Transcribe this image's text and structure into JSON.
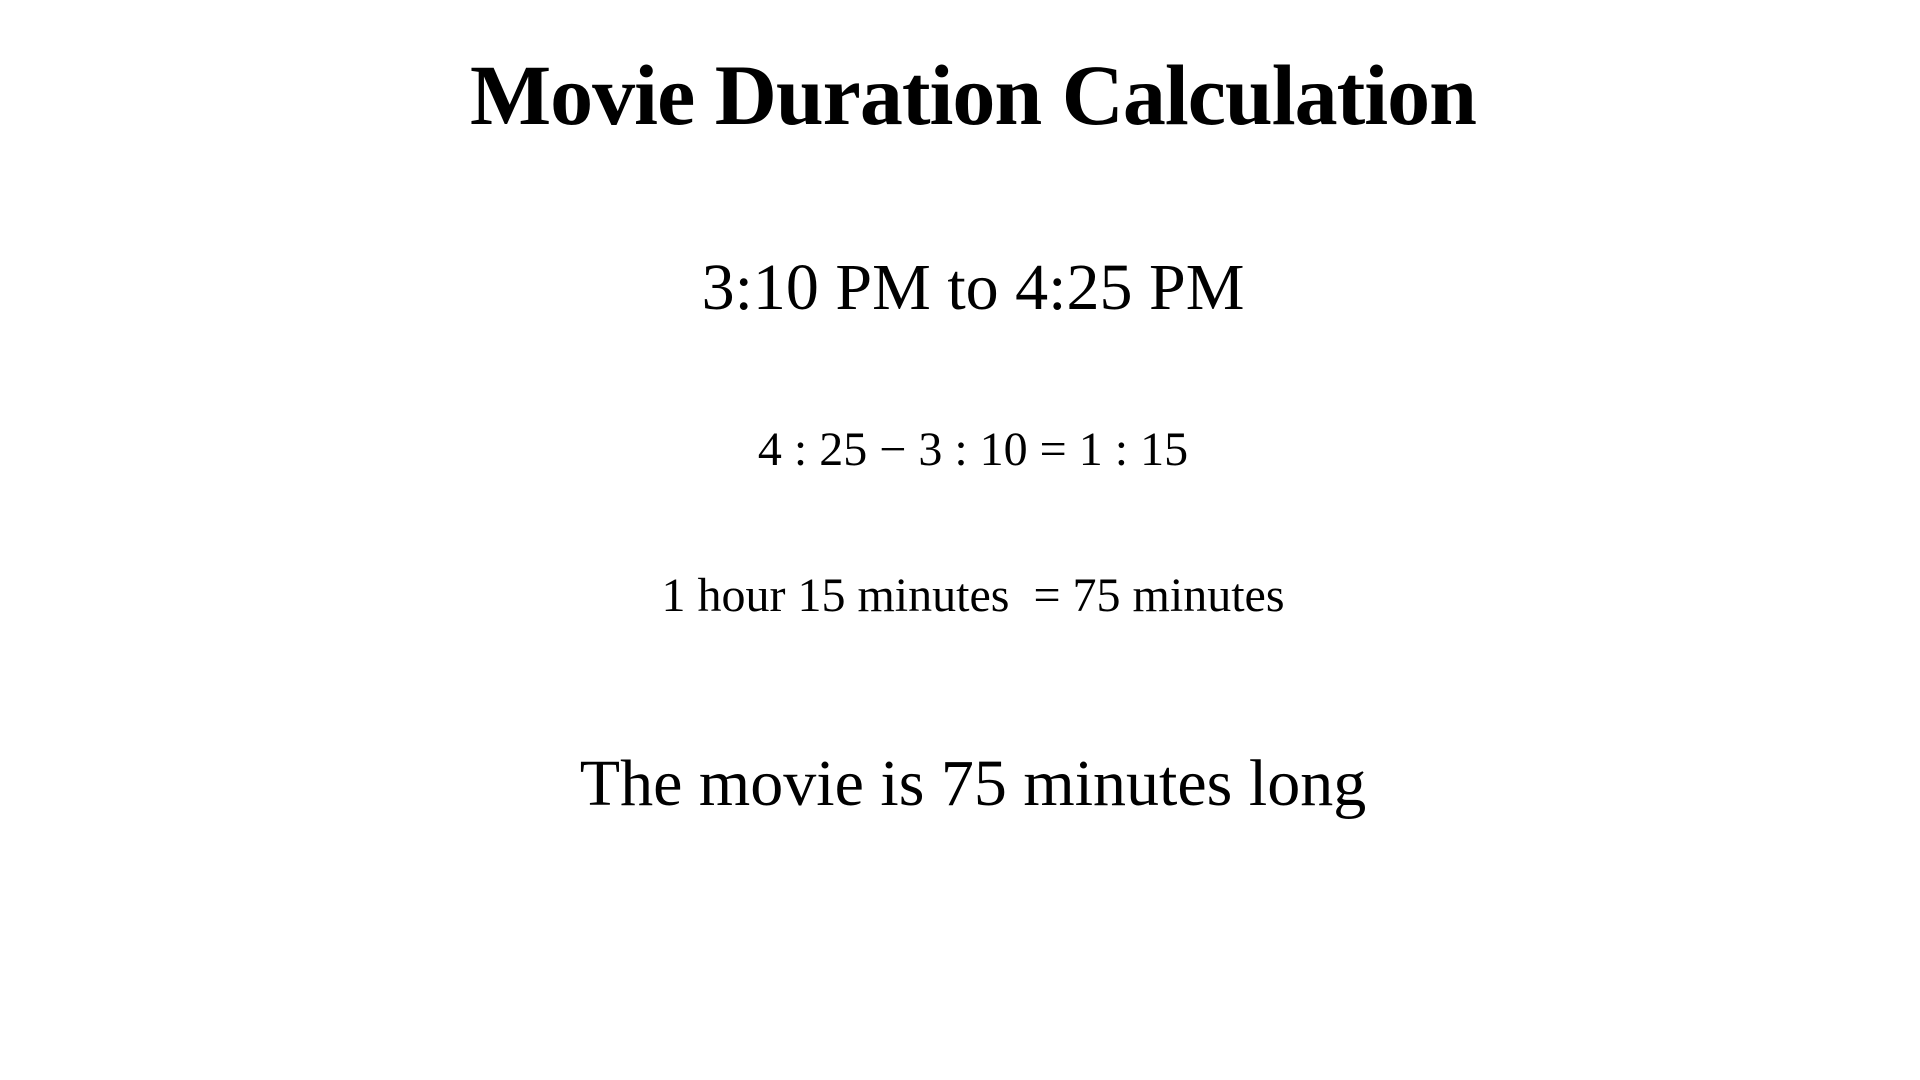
{
  "page": {
    "background_color": "#ffffff",
    "text_color": "#000000"
  },
  "document": {
    "title": "Movie Duration Calculation",
    "time_range": "3:10 PM to 4:25 PM",
    "equation": "4 : 25 − 3 : 10 = 1 : 15",
    "conversion": "1 hour 15 minutes  = 75 minutes",
    "conclusion": "The movie is 75 minutes long"
  }
}
